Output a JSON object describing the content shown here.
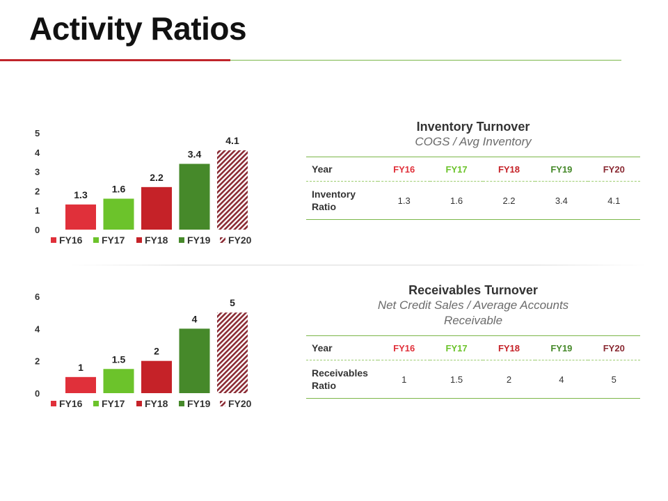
{
  "page": {
    "title": "Activity Ratios"
  },
  "colors": {
    "accent_red": "#c0242b",
    "rule_green": "#7ab648",
    "series": [
      "#e0303a",
      "#6cc32b",
      "#c52228",
      "#46892a",
      "#8a2a33"
    ]
  },
  "inventory": {
    "title": "Inventory Turnover",
    "subtitle": "COGS / Avg Inventory",
    "table": {
      "header_label": "Year",
      "years": [
        "FY16",
        "FY17",
        "FY18",
        "FY19",
        "FY20"
      ],
      "row_label": "Inventory Ratio",
      "values": [
        "1.3",
        "1.6",
        "2.2",
        "3.4",
        "4.1"
      ]
    }
  },
  "receivables": {
    "title": "Receivables Turnover",
    "subtitle": "Net Credit Sales / Average Accounts Receivable",
    "table": {
      "header_label": "Year",
      "years": [
        "FY16",
        "FY17",
        "FY18",
        "FY19",
        "FY20"
      ],
      "row_label": "Receivables Ratio",
      "values": [
        "1",
        "1.5",
        "2",
        "4",
        "5"
      ]
    }
  },
  "chart_data": [
    {
      "type": "bar",
      "title": "",
      "categories": [
        "FY16",
        "FY17",
        "FY18",
        "FY19",
        "FY20"
      ],
      "values": [
        1.3,
        1.6,
        2.2,
        3.4,
        4.1
      ],
      "data_labels": [
        "1.3",
        "1.6",
        "2.2",
        "3.4",
        "4.1"
      ],
      "ylim": [
        0,
        5
      ],
      "yticks": [
        "0",
        "1",
        "2",
        "3",
        "4",
        "5"
      ],
      "xlabel": "",
      "ylabel": "",
      "legend": [
        "FY16",
        "FY17",
        "FY18",
        "FY19",
        "FY20"
      ],
      "legend_position": "bottom",
      "grid": false
    },
    {
      "type": "bar",
      "title": "",
      "categories": [
        "FY16",
        "FY17",
        "FY18",
        "FY19",
        "FY20"
      ],
      "values": [
        1,
        1.5,
        2,
        4,
        5
      ],
      "data_labels": [
        "1",
        "1.5",
        "2",
        "4",
        "5"
      ],
      "ylim": [
        0,
        6
      ],
      "yticks": [
        "0",
        "2",
        "4",
        "6"
      ],
      "xlabel": "",
      "ylabel": "",
      "legend": [
        "FY16",
        "FY17",
        "FY18",
        "FY19",
        "FY20"
      ],
      "legend_position": "bottom",
      "grid": false
    }
  ]
}
